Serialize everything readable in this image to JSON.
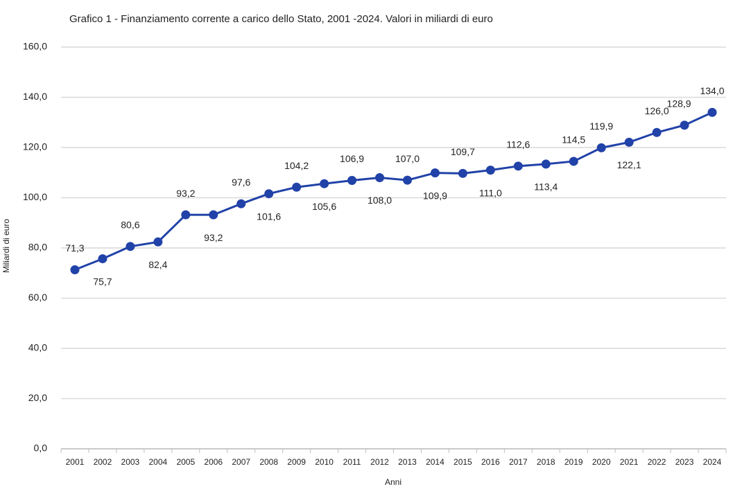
{
  "chart_data": {
    "type": "line",
    "title": "Grafico 1  - Finanziamento corrente a carico dello Stato, 2001 -2024. Valori in miliardi di euro",
    "x_label": "Anni",
    "y_label": "Miliardi di euro",
    "categories": [
      "2001",
      "2002",
      "2003",
      "2004",
      "2005",
      "2006",
      "2007",
      "2008",
      "2009",
      "2010",
      "2011",
      "2012",
      "2013",
      "2014",
      "2015",
      "2016",
      "2017",
      "2018",
      "2019",
      "2020",
      "2021",
      "2022",
      "2023",
      "2024"
    ],
    "series": [
      {
        "name": "Finanziamento corrente",
        "color": "#2142a8",
        "values": [
          71.3,
          75.7,
          80.6,
          82.4,
          93.2,
          93.2,
          97.6,
          101.6,
          104.2,
          105.6,
          106.9,
          108.0,
          107.0,
          109.9,
          109.7,
          111.0,
          112.6,
          113.4,
          114.5,
          119.9,
          122.1,
          126.0,
          128.9,
          134.0
        ],
        "value_labels": [
          "71,3",
          "75,7",
          "80,6",
          "82,4",
          "93,2",
          "93,2",
          "97,6",
          "101,6",
          "104,2",
          "105,6",
          "106,9",
          "108,0",
          "107,0",
          "109,9",
          "109,7",
          "111,0",
          "112,6",
          "113,4",
          "114,5",
          "119,9",
          "122,1",
          "126,0",
          "128,9",
          "134,0"
        ]
      }
    ],
    "ylim": [
      0,
      160
    ],
    "yticks": [
      {
        "value": 0,
        "label": "0,0"
      },
      {
        "value": 20,
        "label": "20,0"
      },
      {
        "value": 40,
        "label": "40,0"
      },
      {
        "value": 60,
        "label": "60,0"
      },
      {
        "value": 80,
        "label": "80,0"
      },
      {
        "value": 100,
        "label": "100,0"
      },
      {
        "value": 120,
        "label": "120,0"
      },
      {
        "value": 140,
        "label": "140,0"
      },
      {
        "value": 160,
        "label": "160,0"
      }
    ],
    "grid": true
  }
}
